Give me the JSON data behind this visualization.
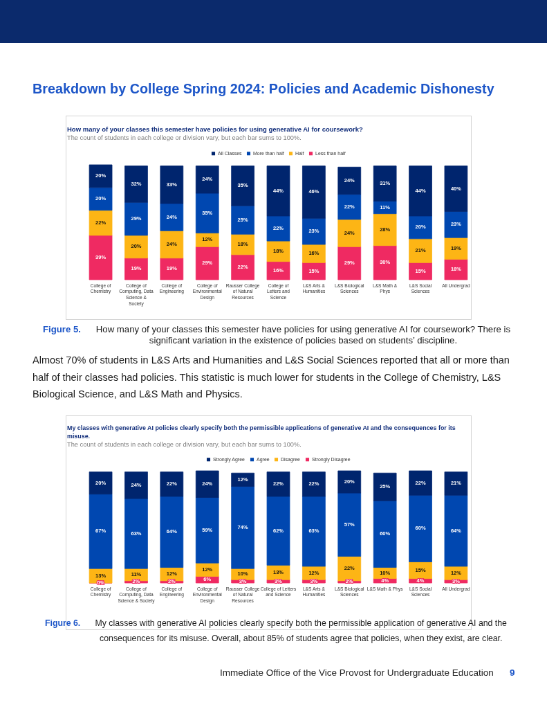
{
  "chart_data": [
    {
      "type": "bar",
      "stacked": true,
      "legend": "top",
      "title": "How many of your classes this semester have policies for using generative AI for coursework?",
      "subtitle": "The count of students in each college or division vary, but each bar sums to 100%.",
      "categories": [
        "College of Chemistry",
        "College of Computing, Data Science & Society",
        "College of Engineering",
        "College of Environmental Design",
        "Rausser College of Natural Resources",
        "College of Letters and Science",
        "L&S Arts & Humanities",
        "L&S Biological Sciences",
        "L&S Math & Phys",
        "L&S Social Sciences",
        "All Undergrad"
      ],
      "series": [
        {
          "name": "Less than half",
          "color": "#ef2a62",
          "values": [
            39,
            19,
            19,
            29,
            22,
            16,
            15,
            29,
            30,
            15,
            18
          ],
          "value_labels": [
            "39%",
            "19%",
            "19%",
            "29%",
            "22%",
            "16%",
            "15%",
            "29%",
            "30%",
            "15%",
            "18%"
          ]
        },
        {
          "name": "Half",
          "color": "#fdb515",
          "values": [
            22,
            20,
            24,
            12,
            18,
            18,
            16,
            24,
            28,
            21,
            19
          ],
          "value_labels": [
            "22%",
            "20%",
            "24%",
            "12%",
            "18%",
            "18%",
            "16%",
            "24%",
            "28%",
            "21%",
            "19%"
          ]
        },
        {
          "name": "More than half",
          "color": "#0047b0",
          "values": [
            20,
            29,
            24,
            35,
            25,
            22,
            23,
            22,
            11,
            20,
            23
          ],
          "value_labels": [
            "20%",
            "29%",
            "24%",
            "35%",
            "25%",
            "22%",
            "23%",
            "22%",
            "11%",
            "20%",
            "23%"
          ]
        },
        {
          "name": "All Classes",
          "color": "#00256e",
          "values": [
            20,
            32,
            33,
            24,
            35,
            44,
            46,
            24,
            31,
            44,
            40
          ],
          "value_labels": [
            "20%",
            "32%",
            "33%",
            "24%",
            "35%",
            "44%",
            "46%",
            "24%",
            "31%",
            "44%",
            "40%"
          ]
        }
      ],
      "annotations": [
        "Breakdown by College Spring 2024: Policies and Academic Dishonesty",
        "Figure 5.",
        "How many of your classes this semester have policies for using generative AI for coursework? There is significant variation in the existence of policies based on students’ discipline.",
        "Almost 70% of students in L&S Arts and Humanities and L&S Social Sciences reported that all or more than half of their classes had policies. This statistic is much lower for students in the College of Chemistry, L&S Biological Science, and L&S Math and Physics."
      ]
    },
    {
      "type": "bar",
      "stacked": true,
      "legend": "top",
      "title": "My classes with generative AI policies clearly specify both the permissible applications of generative AI and the consequences for its misuse.",
      "subtitle": "The count of students in each college or division vary, but each bar sums to 100%.",
      "categories": [
        "College of Chemistry",
        "College of Computing, Data Science & Society",
        "College of Engineering",
        "College of Environmental Design",
        "Rausser College of Natural Resources",
        "College of Letters and Science",
        "L&S Arts & Humanities",
        "L&S Biological Sciences",
        "L&S Math & Phys",
        "L&S Social Sciences",
        "All Undergrad"
      ],
      "series": [
        {
          "name": "Strongly Disagree",
          "color": "#ef2a62",
          "values": [
            0,
            2,
            2,
            6,
            3,
            3,
            3,
            2,
            4,
            4,
            3
          ],
          "value_labels": [
            "0%",
            "2%",
            "2%",
            "6%",
            "3%",
            "3%",
            "3%",
            "2%",
            "4%",
            "4%",
            "3%"
          ]
        },
        {
          "name": "Disagree",
          "color": "#fdb515",
          "values": [
            13,
            11,
            12,
            12,
            10,
            13,
            12,
            22,
            10,
            15,
            12
          ],
          "value_labels": [
            "13%",
            "11%",
            "12%",
            "12%",
            "10%",
            "13%",
            "12%",
            "22%",
            "10%",
            "15%",
            "12%"
          ]
        },
        {
          "name": "Agree",
          "color": "#0047b0",
          "values": [
            67,
            63,
            64,
            59,
            74,
            62,
            63,
            57,
            60,
            60,
            64
          ],
          "value_labels": [
            "67%",
            "63%",
            "64%",
            "59%",
            "74%",
            "62%",
            "63%",
            "57%",
            "60%",
            "60%",
            "64%"
          ]
        },
        {
          "name": "Strongly Agree",
          "color": "#00256e",
          "values": [
            20,
            24,
            22,
            24,
            12,
            22,
            22,
            20,
            25,
            22,
            21
          ],
          "value_labels": [
            "20%",
            "24%",
            "22%",
            "24%",
            "12%",
            "22%",
            "22%",
            "20%",
            "25%",
            "22%",
            "21%"
          ]
        }
      ],
      "annotations": [
        "Figure 6.",
        "My classes with generative AI policies clearly specify both the permissible application of generative AI and the consequences for its misuse. Overall, about 85% of students agree that policies, when they exist, are clear.",
        "Immediate Office of the Vice Provost for Undergraduate Education",
        "9"
      ]
    }
  ]
}
